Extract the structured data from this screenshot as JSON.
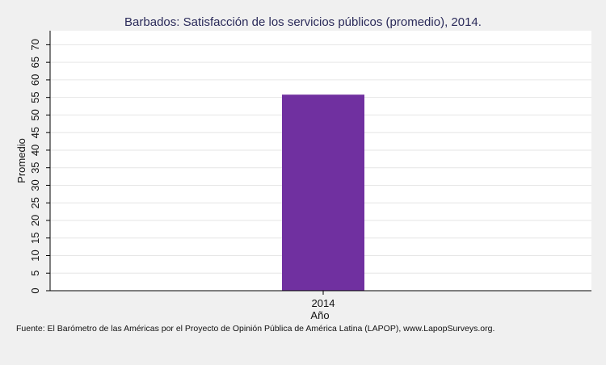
{
  "chart_data": {
    "type": "bar",
    "title": "Barbados: Satisfacción de los servicios públicos (promedio), 2014.",
    "xlabel": "Año",
    "ylabel": "Promedio",
    "categories": [
      "2014"
    ],
    "series": [
      {
        "values": [
          55.8
        ]
      }
    ],
    "ylim": [
      0,
      74
    ],
    "yticks": [
      0,
      5,
      10,
      15,
      20,
      25,
      30,
      35,
      40,
      45,
      50,
      55,
      60,
      65,
      70
    ],
    "grid": true,
    "legend": "none",
    "colors": {
      "bar": "#7030a0",
      "plot_bg": "#ffffff",
      "page_bg": "#f0f0f0",
      "grid": "#e6e6e6"
    },
    "source": "Fuente: El Barómetro de las Américas por el Proyecto de Opinión Pública de América Latina (LAPOP), www.LapopSurveys.org."
  }
}
